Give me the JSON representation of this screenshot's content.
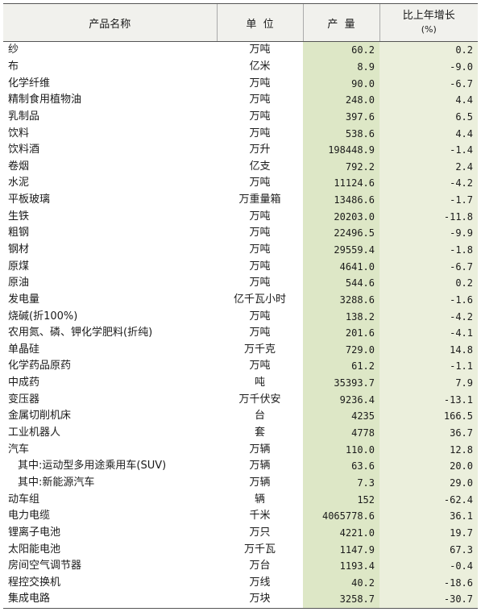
{
  "header": {
    "product": "产品名称",
    "unit": "单  位",
    "output": "产  量",
    "growth": "比上年增长",
    "growth_unit": "(%)"
  },
  "rows": [
    {
      "name": "纱",
      "unit": "万吨",
      "output": "60.2",
      "growth": "0.2"
    },
    {
      "name": "布",
      "unit": "亿米",
      "output": "8.9",
      "growth": "-9.0"
    },
    {
      "name": "化学纤维",
      "unit": "万吨",
      "output": "90.0",
      "growth": "-6.7"
    },
    {
      "name": "精制食用植物油",
      "unit": "万吨",
      "output": "248.0",
      "growth": "4.4"
    },
    {
      "name": "乳制品",
      "unit": "万吨",
      "output": "397.6",
      "growth": "6.5"
    },
    {
      "name": "饮料",
      "unit": "万吨",
      "output": "538.6",
      "growth": "4.4"
    },
    {
      "name": "饮料酒",
      "unit": "万升",
      "output": "198448.9",
      "growth": "-1.4"
    },
    {
      "name": "卷烟",
      "unit": "亿支",
      "output": "792.2",
      "growth": "2.4"
    },
    {
      "name": "水泥",
      "unit": "万吨",
      "output": "11124.6",
      "growth": "-4.2"
    },
    {
      "name": "平板玻璃",
      "unit": "万重量箱",
      "output": "13486.6",
      "growth": "-1.7"
    },
    {
      "name": "生铁",
      "unit": "万吨",
      "output": "20203.0",
      "growth": "-11.8"
    },
    {
      "name": "粗钢",
      "unit": "万吨",
      "output": "22496.5",
      "growth": "-9.9"
    },
    {
      "name": "钢材",
      "unit": "万吨",
      "output": "29559.4",
      "growth": "-1.8"
    },
    {
      "name": "原煤",
      "unit": "万吨",
      "output": "4641.0",
      "growth": "-6.7"
    },
    {
      "name": "原油",
      "unit": "万吨",
      "output": "544.6",
      "growth": "0.2"
    },
    {
      "name": "发电量",
      "unit": "亿千瓦小时",
      "output": "3288.6",
      "growth": "-1.6"
    },
    {
      "name": "烧碱(折100%)",
      "unit": "万吨",
      "output": "138.2",
      "growth": "-4.2"
    },
    {
      "name": "农用氮、磷、钾化学肥料(折纯)",
      "unit": "万吨",
      "output": "201.6",
      "growth": "-4.1"
    },
    {
      "name": "单晶硅",
      "unit": "万千克",
      "output": "729.0",
      "growth": "14.8"
    },
    {
      "name": "化学药品原药",
      "unit": "万吨",
      "output": "61.2",
      "growth": "-1.1"
    },
    {
      "name": "中成药",
      "unit": "吨",
      "output": "35393.7",
      "growth": "7.9"
    },
    {
      "name": "变压器",
      "unit": "万千伏安",
      "output": "9236.4",
      "growth": "-13.1"
    },
    {
      "name": "金属切削机床",
      "unit": "台",
      "output": "4235",
      "growth": "166.5"
    },
    {
      "name": "工业机器人",
      "unit": "套",
      "output": "4778",
      "growth": "36.7"
    },
    {
      "name": "汽车",
      "unit": "万辆",
      "output": "110.0",
      "growth": "12.8"
    },
    {
      "name": "其中:运动型多用途乘用车(SUV)",
      "unit": "万辆",
      "output": "63.6",
      "growth": "20.0",
      "indent": true
    },
    {
      "name": "其中:新能源汽车",
      "unit": "万辆",
      "output": "7.3",
      "growth": "29.0",
      "indent": true
    },
    {
      "name": "动车组",
      "unit": "辆",
      "output": "152",
      "growth": "-62.4"
    },
    {
      "name": "电力电缆",
      "unit": "千米",
      "output": "4065778.6",
      "growth": "36.1"
    },
    {
      "name": "锂离子电池",
      "unit": "万只",
      "output": "4221.0",
      "growth": "19.7"
    },
    {
      "name": "太阳能电池",
      "unit": "万千瓦",
      "output": "1147.9",
      "growth": "67.3"
    },
    {
      "name": "房间空气调节器",
      "unit": "万台",
      "output": "1193.4",
      "growth": "-0.4"
    },
    {
      "name": "程控交换机",
      "unit": "万线",
      "output": "40.2",
      "growth": "-18.6"
    },
    {
      "name": "集成电路",
      "unit": "万块",
      "output": "3258.7",
      "growth": "-30.7"
    }
  ]
}
